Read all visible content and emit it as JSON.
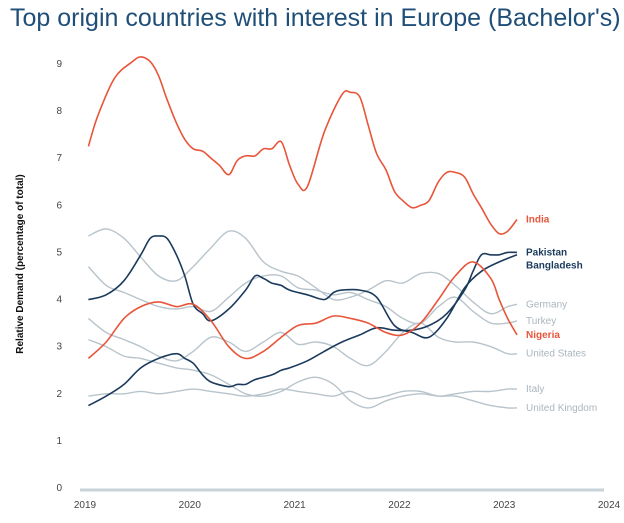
{
  "chart_data": {
    "type": "line",
    "title": "Top origin countries with interest in Europe (Bachelor's)",
    "xlabel": "",
    "ylabel": "Relative Demand (percentage of total)",
    "xlim": [
      2019,
      2024
    ],
    "ylim": [
      0,
      9
    ],
    "x_ticks": [
      "2019",
      "2020",
      "2021",
      "2022",
      "2023",
      "2024"
    ],
    "y_ticks": [
      "0",
      "1",
      "2",
      "3",
      "4",
      "5",
      "6",
      "7",
      "8",
      "9"
    ],
    "grid": false,
    "legend": "end-of-line labels",
    "series": [
      {
        "name": "India",
        "color": "#e8553a",
        "label_color": "#e8553a",
        "emphasis": true,
        "points": [
          [
            2019.08,
            7.25
          ],
          [
            2019.17,
            7.9
          ],
          [
            2019.33,
            8.7
          ],
          [
            2019.5,
            9.05
          ],
          [
            2019.58,
            9.15
          ],
          [
            2019.67,
            9.05
          ],
          [
            2019.75,
            8.75
          ],
          [
            2019.83,
            8.25
          ],
          [
            2019.92,
            7.75
          ],
          [
            2020.0,
            7.4
          ],
          [
            2020.08,
            7.2
          ],
          [
            2020.17,
            7.15
          ],
          [
            2020.25,
            7.0
          ],
          [
            2020.33,
            6.85
          ],
          [
            2020.42,
            6.65
          ],
          [
            2020.5,
            6.95
          ],
          [
            2020.58,
            7.05
          ],
          [
            2020.67,
            7.05
          ],
          [
            2020.75,
            7.2
          ],
          [
            2020.83,
            7.2
          ],
          [
            2020.92,
            7.35
          ],
          [
            2021.0,
            6.85
          ],
          [
            2021.08,
            6.45
          ],
          [
            2021.17,
            6.4
          ],
          [
            2021.33,
            7.55
          ],
          [
            2021.5,
            8.35
          ],
          [
            2021.58,
            8.4
          ],
          [
            2021.67,
            8.3
          ],
          [
            2021.75,
            7.7
          ],
          [
            2021.83,
            7.1
          ],
          [
            2021.92,
            6.75
          ],
          [
            2022.0,
            6.3
          ],
          [
            2022.08,
            6.1
          ],
          [
            2022.17,
            5.95
          ],
          [
            2022.25,
            6.0
          ],
          [
            2022.33,
            6.1
          ],
          [
            2022.42,
            6.5
          ],
          [
            2022.5,
            6.7
          ],
          [
            2022.58,
            6.7
          ],
          [
            2022.67,
            6.6
          ],
          [
            2022.75,
            6.25
          ],
          [
            2022.83,
            5.95
          ],
          [
            2022.92,
            5.6
          ],
          [
            2023.0,
            5.4
          ],
          [
            2023.08,
            5.45
          ],
          [
            2023.17,
            5.7
          ]
        ]
      },
      {
        "name": "Pakistan",
        "color": "#1b3a5c",
        "label_color": "#1b3a5c",
        "emphasis": true,
        "points": [
          [
            2019.08,
            1.75
          ],
          [
            2019.25,
            1.95
          ],
          [
            2019.42,
            2.2
          ],
          [
            2019.58,
            2.55
          ],
          [
            2019.75,
            2.75
          ],
          [
            2019.92,
            2.85
          ],
          [
            2020.0,
            2.75
          ],
          [
            2020.08,
            2.65
          ],
          [
            2020.17,
            2.4
          ],
          [
            2020.25,
            2.25
          ],
          [
            2020.42,
            2.15
          ],
          [
            2020.5,
            2.2
          ],
          [
            2020.58,
            2.2
          ],
          [
            2020.67,
            2.3
          ],
          [
            2020.83,
            2.4
          ],
          [
            2020.92,
            2.5
          ],
          [
            2021.0,
            2.55
          ],
          [
            2021.17,
            2.7
          ],
          [
            2021.33,
            2.9
          ],
          [
            2021.5,
            3.1
          ],
          [
            2021.67,
            3.25
          ],
          [
            2021.83,
            3.4
          ],
          [
            2022.0,
            3.35
          ],
          [
            2022.17,
            3.35
          ],
          [
            2022.33,
            3.45
          ],
          [
            2022.5,
            3.7
          ],
          [
            2022.67,
            4.2
          ],
          [
            2022.75,
            4.6
          ],
          [
            2022.83,
            4.95
          ],
          [
            2022.92,
            4.95
          ],
          [
            2023.0,
            4.95
          ],
          [
            2023.08,
            5.0
          ],
          [
            2023.17,
            5.0
          ]
        ]
      },
      {
        "name": "Bangladesh",
        "color": "#1b3a5c",
        "label_color": "#1b3a5c",
        "emphasis": true,
        "points": [
          [
            2019.08,
            4.0
          ],
          [
            2019.25,
            4.1
          ],
          [
            2019.42,
            4.4
          ],
          [
            2019.58,
            4.95
          ],
          [
            2019.67,
            5.3
          ],
          [
            2019.75,
            5.35
          ],
          [
            2019.83,
            5.3
          ],
          [
            2019.92,
            4.95
          ],
          [
            2020.0,
            4.5
          ],
          [
            2020.08,
            3.9
          ],
          [
            2020.17,
            3.7
          ],
          [
            2020.25,
            3.55
          ],
          [
            2020.42,
            3.8
          ],
          [
            2020.58,
            4.2
          ],
          [
            2020.67,
            4.5
          ],
          [
            2020.75,
            4.45
          ],
          [
            2020.83,
            4.35
          ],
          [
            2020.92,
            4.3
          ],
          [
            2021.0,
            4.2
          ],
          [
            2021.17,
            4.1
          ],
          [
            2021.33,
            4.0
          ],
          [
            2021.42,
            4.15
          ],
          [
            2021.5,
            4.2
          ],
          [
            2021.67,
            4.2
          ],
          [
            2021.83,
            4.05
          ],
          [
            2022.0,
            3.45
          ],
          [
            2022.17,
            3.3
          ],
          [
            2022.33,
            3.2
          ],
          [
            2022.5,
            3.6
          ],
          [
            2022.67,
            4.25
          ],
          [
            2022.83,
            4.6
          ],
          [
            2023.0,
            4.8
          ],
          [
            2023.17,
            4.95
          ]
        ]
      },
      {
        "name": "Nigeria",
        "color": "#e8553a",
        "label_color": "#e8553a",
        "emphasis": true,
        "points": [
          [
            2019.08,
            2.75
          ],
          [
            2019.25,
            3.1
          ],
          [
            2019.42,
            3.6
          ],
          [
            2019.58,
            3.85
          ],
          [
            2019.75,
            3.95
          ],
          [
            2019.92,
            3.85
          ],
          [
            2020.08,
            3.9
          ],
          [
            2020.25,
            3.55
          ],
          [
            2020.42,
            3.0
          ],
          [
            2020.58,
            2.75
          ],
          [
            2020.75,
            2.9
          ],
          [
            2020.92,
            3.2
          ],
          [
            2021.08,
            3.45
          ],
          [
            2021.25,
            3.5
          ],
          [
            2021.42,
            3.65
          ],
          [
            2021.58,
            3.6
          ],
          [
            2021.75,
            3.5
          ],
          [
            2021.92,
            3.3
          ],
          [
            2022.08,
            3.25
          ],
          [
            2022.25,
            3.5
          ],
          [
            2022.42,
            4.0
          ],
          [
            2022.58,
            4.5
          ],
          [
            2022.75,
            4.8
          ],
          [
            2022.92,
            4.45
          ],
          [
            2023.0,
            4.0
          ],
          [
            2023.08,
            3.6
          ],
          [
            2023.17,
            3.25
          ]
        ]
      },
      {
        "name": "Germany",
        "color": "#b8c4cb",
        "label_color": "#a9b6be",
        "emphasis": false,
        "points": [
          [
            2019.08,
            5.35
          ],
          [
            2019.25,
            5.5
          ],
          [
            2019.42,
            5.3
          ],
          [
            2019.58,
            4.9
          ],
          [
            2019.75,
            4.5
          ],
          [
            2019.92,
            4.4
          ],
          [
            2020.08,
            4.7
          ],
          [
            2020.25,
            5.1
          ],
          [
            2020.42,
            5.45
          ],
          [
            2020.58,
            5.3
          ],
          [
            2020.75,
            4.8
          ],
          [
            2020.92,
            4.6
          ],
          [
            2021.08,
            4.5
          ],
          [
            2021.25,
            4.25
          ],
          [
            2021.42,
            4.0
          ],
          [
            2021.58,
            4.05
          ],
          [
            2021.75,
            4.2
          ],
          [
            2021.92,
            4.4
          ],
          [
            2022.08,
            4.35
          ],
          [
            2022.25,
            4.55
          ],
          [
            2022.42,
            4.55
          ],
          [
            2022.58,
            4.3
          ],
          [
            2022.75,
            3.95
          ],
          [
            2022.92,
            3.7
          ],
          [
            2023.08,
            3.85
          ],
          [
            2023.17,
            3.9
          ]
        ]
      },
      {
        "name": "Turkey",
        "color": "#b8c4cb",
        "label_color": "#a9b6be",
        "emphasis": false,
        "points": [
          [
            2019.08,
            4.7
          ],
          [
            2019.25,
            4.3
          ],
          [
            2019.42,
            4.15
          ],
          [
            2019.58,
            4.0
          ],
          [
            2019.75,
            3.85
          ],
          [
            2019.92,
            3.8
          ],
          [
            2020.08,
            3.85
          ],
          [
            2020.25,
            3.75
          ],
          [
            2020.42,
            4.05
          ],
          [
            2020.58,
            4.35
          ],
          [
            2020.75,
            4.5
          ],
          [
            2020.92,
            4.5
          ],
          [
            2021.08,
            4.25
          ],
          [
            2021.25,
            4.2
          ],
          [
            2021.42,
            4.1
          ],
          [
            2021.58,
            4.15
          ],
          [
            2021.75,
            4.0
          ],
          [
            2021.92,
            3.85
          ],
          [
            2022.08,
            3.6
          ],
          [
            2022.25,
            3.5
          ],
          [
            2022.42,
            3.85
          ],
          [
            2022.58,
            4.05
          ],
          [
            2022.75,
            3.75
          ],
          [
            2022.92,
            3.5
          ],
          [
            2023.08,
            3.5
          ],
          [
            2023.17,
            3.55
          ]
        ]
      },
      {
        "name": "United States",
        "color": "#b8c4cb",
        "label_color": "#a9b6be",
        "emphasis": false,
        "points": [
          [
            2019.08,
            3.6
          ],
          [
            2019.25,
            3.3
          ],
          [
            2019.42,
            3.15
          ],
          [
            2019.58,
            3.0
          ],
          [
            2019.75,
            2.8
          ],
          [
            2019.92,
            2.7
          ],
          [
            2020.08,
            2.9
          ],
          [
            2020.25,
            3.2
          ],
          [
            2020.42,
            3.1
          ],
          [
            2020.58,
            2.9
          ],
          [
            2020.75,
            3.1
          ],
          [
            2020.92,
            3.3
          ],
          [
            2021.08,
            3.05
          ],
          [
            2021.25,
            3.1
          ],
          [
            2021.42,
            3.0
          ],
          [
            2021.58,
            2.75
          ],
          [
            2021.75,
            2.6
          ],
          [
            2021.92,
            2.9
          ],
          [
            2022.08,
            3.3
          ],
          [
            2022.25,
            3.5
          ],
          [
            2022.42,
            3.2
          ],
          [
            2022.58,
            3.1
          ],
          [
            2022.75,
            3.1
          ],
          [
            2022.92,
            3.0
          ],
          [
            2023.08,
            2.85
          ],
          [
            2023.17,
            2.85
          ]
        ]
      },
      {
        "name": "Italy",
        "color": "#b8c4cb",
        "label_color": "#a9b6be",
        "emphasis": false,
        "points": [
          [
            2019.08,
            1.95
          ],
          [
            2019.25,
            2.0
          ],
          [
            2019.42,
            2.0
          ],
          [
            2019.58,
            2.05
          ],
          [
            2019.75,
            2.0
          ],
          [
            2019.92,
            2.05
          ],
          [
            2020.08,
            2.1
          ],
          [
            2020.25,
            2.05
          ],
          [
            2020.42,
            2.0
          ],
          [
            2020.58,
            1.95
          ],
          [
            2020.75,
            2.0
          ],
          [
            2020.92,
            2.1
          ],
          [
            2021.08,
            2.05
          ],
          [
            2021.25,
            2.0
          ],
          [
            2021.42,
            1.95
          ],
          [
            2021.58,
            2.05
          ],
          [
            2021.75,
            1.9
          ],
          [
            2021.92,
            1.95
          ],
          [
            2022.08,
            2.05
          ],
          [
            2022.25,
            2.05
          ],
          [
            2022.42,
            1.95
          ],
          [
            2022.58,
            2.0
          ],
          [
            2022.75,
            2.05
          ],
          [
            2022.92,
            2.05
          ],
          [
            2023.08,
            2.1
          ],
          [
            2023.17,
            2.1
          ]
        ]
      },
      {
        "name": "United Kingdom",
        "color": "#b8c4cb",
        "label_color": "#a9b6be",
        "emphasis": false,
        "points": [
          [
            2019.08,
            3.15
          ],
          [
            2019.25,
            3.0
          ],
          [
            2019.42,
            2.8
          ],
          [
            2019.58,
            2.75
          ],
          [
            2019.75,
            2.65
          ],
          [
            2019.92,
            2.55
          ],
          [
            2020.08,
            2.5
          ],
          [
            2020.25,
            2.4
          ],
          [
            2020.42,
            2.2
          ],
          [
            2020.58,
            2.0
          ],
          [
            2020.75,
            1.95
          ],
          [
            2020.92,
            2.05
          ],
          [
            2021.08,
            2.25
          ],
          [
            2021.25,
            2.35
          ],
          [
            2021.42,
            2.2
          ],
          [
            2021.58,
            1.85
          ],
          [
            2021.75,
            1.7
          ],
          [
            2021.92,
            1.85
          ],
          [
            2022.08,
            1.95
          ],
          [
            2022.25,
            2.0
          ],
          [
            2022.42,
            1.95
          ],
          [
            2022.58,
            1.95
          ],
          [
            2022.75,
            1.85
          ],
          [
            2022.92,
            1.75
          ],
          [
            2023.08,
            1.7
          ],
          [
            2023.17,
            1.7
          ]
        ]
      }
    ]
  }
}
